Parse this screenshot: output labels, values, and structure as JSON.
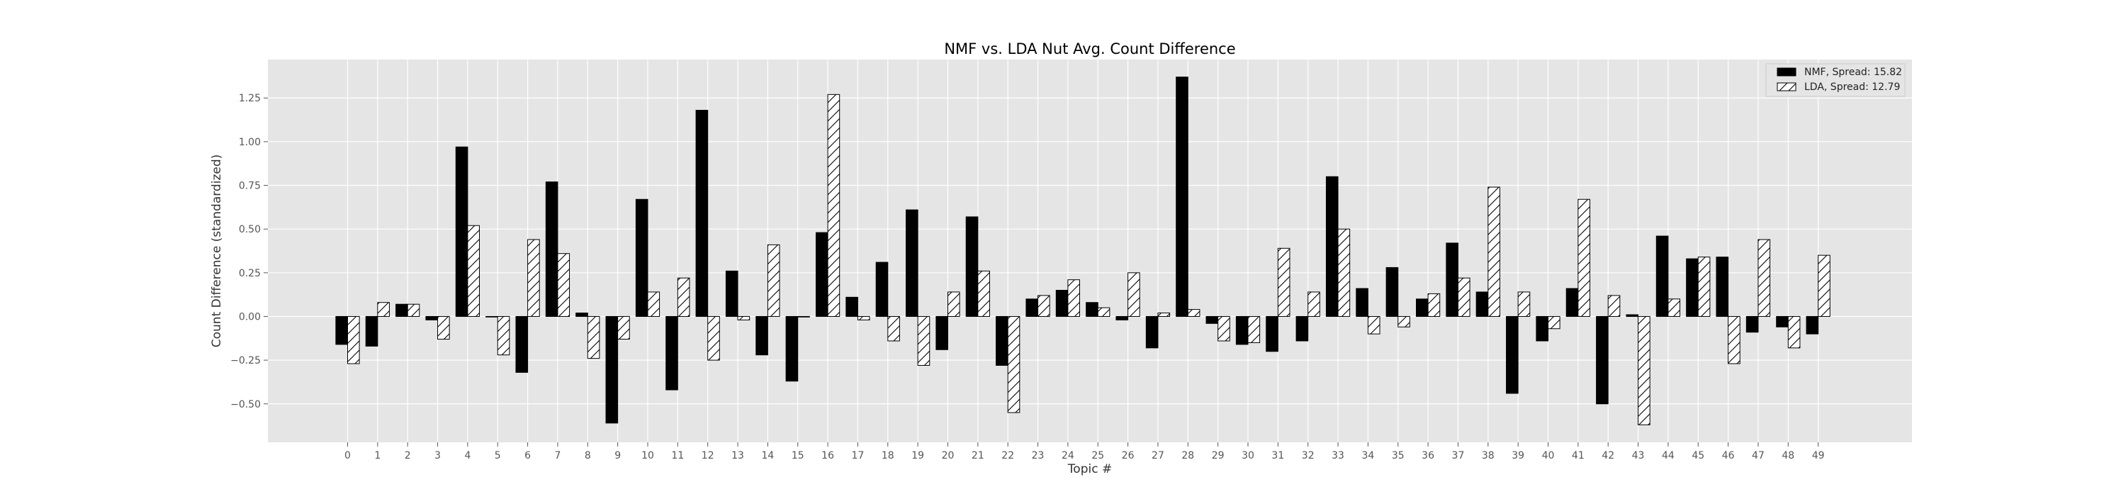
{
  "chart_data": {
    "type": "bar",
    "title": "NMF vs. LDA Nut Avg. Count Difference",
    "xlabel": "Topic #",
    "ylabel": "Count Difference (standardized)",
    "categories": [
      "0",
      "1",
      "2",
      "3",
      "4",
      "5",
      "6",
      "7",
      "8",
      "9",
      "10",
      "11",
      "12",
      "13",
      "14",
      "15",
      "16",
      "17",
      "18",
      "19",
      "20",
      "21",
      "22",
      "23",
      "24",
      "25",
      "26",
      "27",
      "28",
      "29",
      "30",
      "31",
      "32",
      "33",
      "34",
      "35",
      "36",
      "37",
      "38",
      "39",
      "40",
      "41",
      "42",
      "43",
      "44",
      "45",
      "46",
      "47",
      "48",
      "49"
    ],
    "yticks": [
      "−0.50",
      "−0.25",
      "0.00",
      "0.25",
      "0.50",
      "0.75",
      "1.00",
      "1.25"
    ],
    "ylim": [
      -0.72,
      1.47
    ],
    "grid": true,
    "legend_position": "top-right",
    "series": [
      {
        "name": "NMF, Spread: 15.82",
        "color": "#000000",
        "pattern": "solid",
        "values": [
          -0.16,
          -0.17,
          0.07,
          -0.02,
          0.97,
          0.0,
          -0.32,
          0.77,
          0.02,
          -0.61,
          0.67,
          -0.42,
          1.18,
          0.26,
          -0.22,
          -0.37,
          0.48,
          0.11,
          0.31,
          0.61,
          -0.19,
          0.57,
          -0.28,
          0.1,
          0.15,
          0.08,
          -0.02,
          -0.18,
          1.37,
          -0.04,
          -0.16,
          -0.2,
          -0.14,
          0.8,
          0.16,
          0.28,
          0.1,
          0.42,
          0.14,
          -0.44,
          -0.14,
          0.16,
          -0.5,
          0.01,
          0.46,
          0.33,
          0.34,
          -0.09,
          -0.06,
          -0.1
        ]
      },
      {
        "name": "LDA, Spread: 12.79",
        "color": "#ffffff",
        "pattern": "hatch",
        "values": [
          -0.27,
          0.08,
          0.07,
          -0.13,
          0.52,
          -0.22,
          0.44,
          0.36,
          -0.24,
          -0.13,
          0.14,
          0.22,
          -0.25,
          -0.02,
          0.41,
          0.0,
          1.27,
          -0.02,
          -0.14,
          -0.28,
          0.14,
          0.26,
          -0.55,
          0.12,
          0.21,
          0.05,
          0.25,
          0.02,
          0.04,
          -0.14,
          -0.15,
          0.39,
          0.14,
          0.5,
          -0.1,
          -0.06,
          0.13,
          0.22,
          0.74,
          0.14,
          -0.07,
          0.67,
          0.12,
          -0.62,
          0.1,
          0.34,
          -0.27,
          0.44,
          -0.18,
          0.35
        ]
      }
    ]
  }
}
